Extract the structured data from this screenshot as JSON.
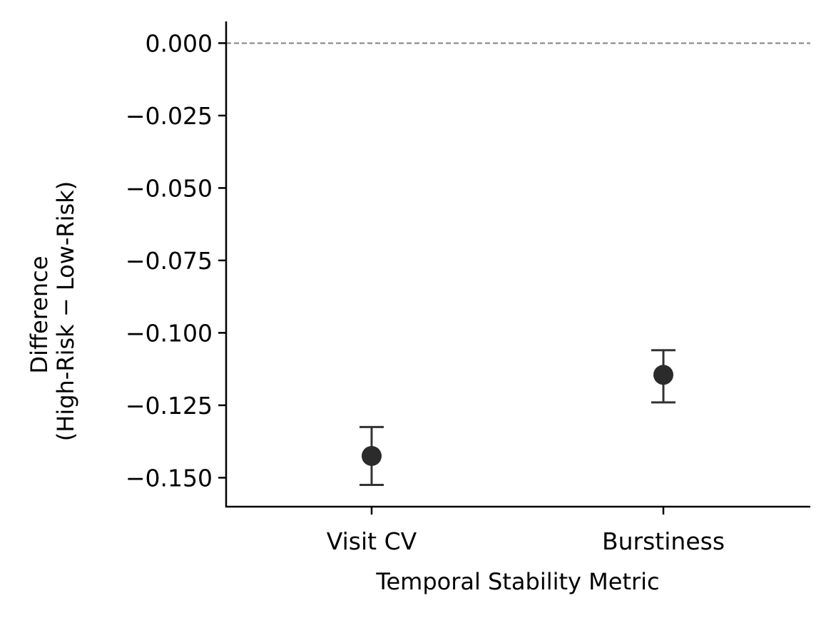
{
  "chart_data": {
    "type": "scatter",
    "subtype": "point-with-error-bars",
    "title": "",
    "xlabel": "Temporal Stability Metric",
    "ylabel_lines": [
      "Difference",
      "(High-Risk − Low-Risk)"
    ],
    "categories": [
      "Visit CV",
      "Burstiness"
    ],
    "values": [
      -0.1425,
      -0.1145
    ],
    "error_lower": [
      -0.1525,
      -0.124
    ],
    "error_upper": [
      -0.1325,
      -0.106
    ],
    "ylim": [
      -0.16,
      0.0075
    ],
    "yticks": [
      0.0,
      -0.025,
      -0.05,
      -0.075,
      -0.1,
      -0.125,
      -0.15
    ],
    "ytick_labels": [
      "0.000",
      "−0.025",
      "−0.050",
      "−0.075",
      "−0.100",
      "−0.125",
      "−0.150"
    ],
    "reference_line": 0.0,
    "grid": false,
    "colors": {
      "marker": "#2b2b2b",
      "errorbar": "#333333",
      "reference": "#808080",
      "axis": "#000000"
    }
  }
}
